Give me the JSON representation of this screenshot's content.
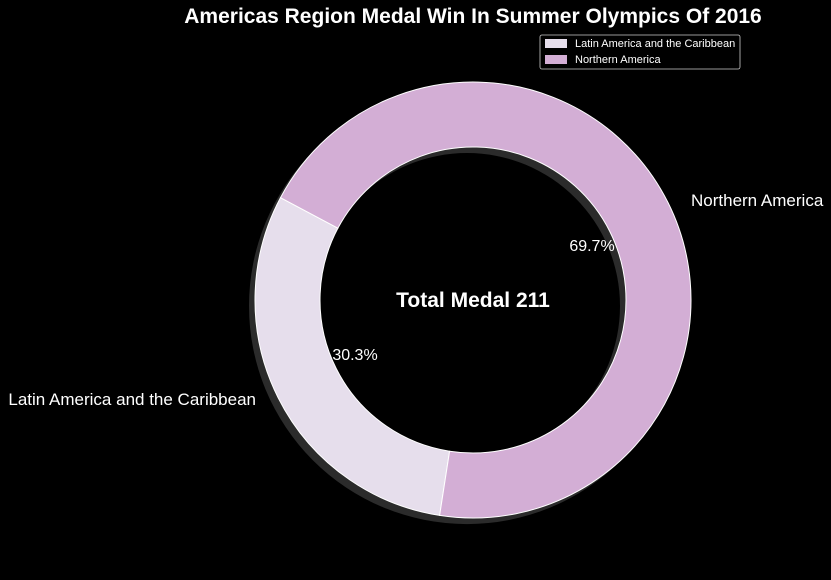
{
  "chart_data": {
    "type": "pie",
    "title": "Americas Region Medal Win In Summer Olympics Of 2016",
    "center_label": "Total Medal 211",
    "donut": true,
    "shadow": true,
    "legend_position": "top-right",
    "categories": [
      "Latin America and the Caribbean",
      "Northern America"
    ],
    "values": [
      64,
      147
    ],
    "percent_labels": [
      "30.3%",
      "69.7%"
    ],
    "colors": [
      "#e6deec",
      "#d3aed5"
    ],
    "background": "#000000",
    "text_color": "#ffffff",
    "legend": {
      "items": [
        {
          "label": "Latin America and the Caribbean",
          "color": "#e6deec"
        },
        {
          "label": "Northern America",
          "color": "#d3aed5"
        }
      ]
    }
  }
}
